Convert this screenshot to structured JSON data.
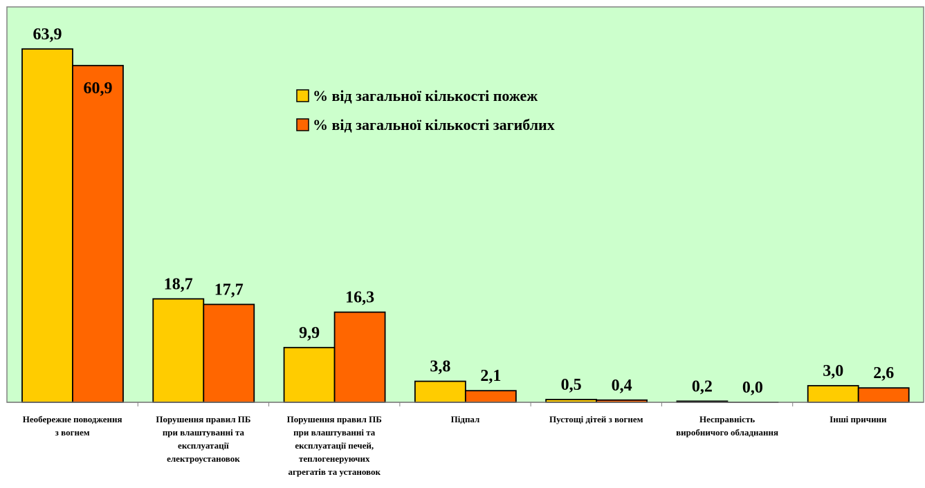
{
  "chart_data": {
    "type": "bar",
    "categories": [
      [
        "Необережне поводження",
        "з вогнем"
      ],
      [
        "Порушення правил ПБ",
        "при влаштуванні та",
        "експлуатації",
        "електроустановок"
      ],
      [
        "Порушення правил ПБ",
        "при влаштуванні та",
        "експлуатації печей,",
        "теплогенеруючих",
        "агрегатів та установок"
      ],
      [
        "Підпал"
      ],
      [
        "Пустощі дітей з вогнем"
      ],
      [
        "Несправність",
        "виробничого обладнання"
      ],
      [
        "Інші причини"
      ]
    ],
    "series": [
      {
        "name": "% від загальної кількості пожеж",
        "color": "#FFCC00",
        "values": [
          63.9,
          18.7,
          9.9,
          3.8,
          0.5,
          0.2,
          3.0
        ],
        "labels": [
          "63,9",
          "18,7",
          "9,9",
          "3,8",
          "0,5",
          "0,2",
          "3,0"
        ]
      },
      {
        "name": "% від загальної кількості загиблих",
        "color": "#FF6600",
        "values": [
          60.9,
          17.7,
          16.3,
          2.1,
          0.4,
          0.0,
          2.6
        ],
        "labels": [
          "60,9",
          "17,7",
          "16,3",
          "2,1",
          "0,4",
          "0,0",
          "2,6"
        ]
      }
    ],
    "ylim": [
      0,
      70
    ],
    "grid": false,
    "legend_position": "top-center",
    "plot_background": "#CCFFCC",
    "title": "",
    "xlabel": "",
    "ylabel": ""
  }
}
